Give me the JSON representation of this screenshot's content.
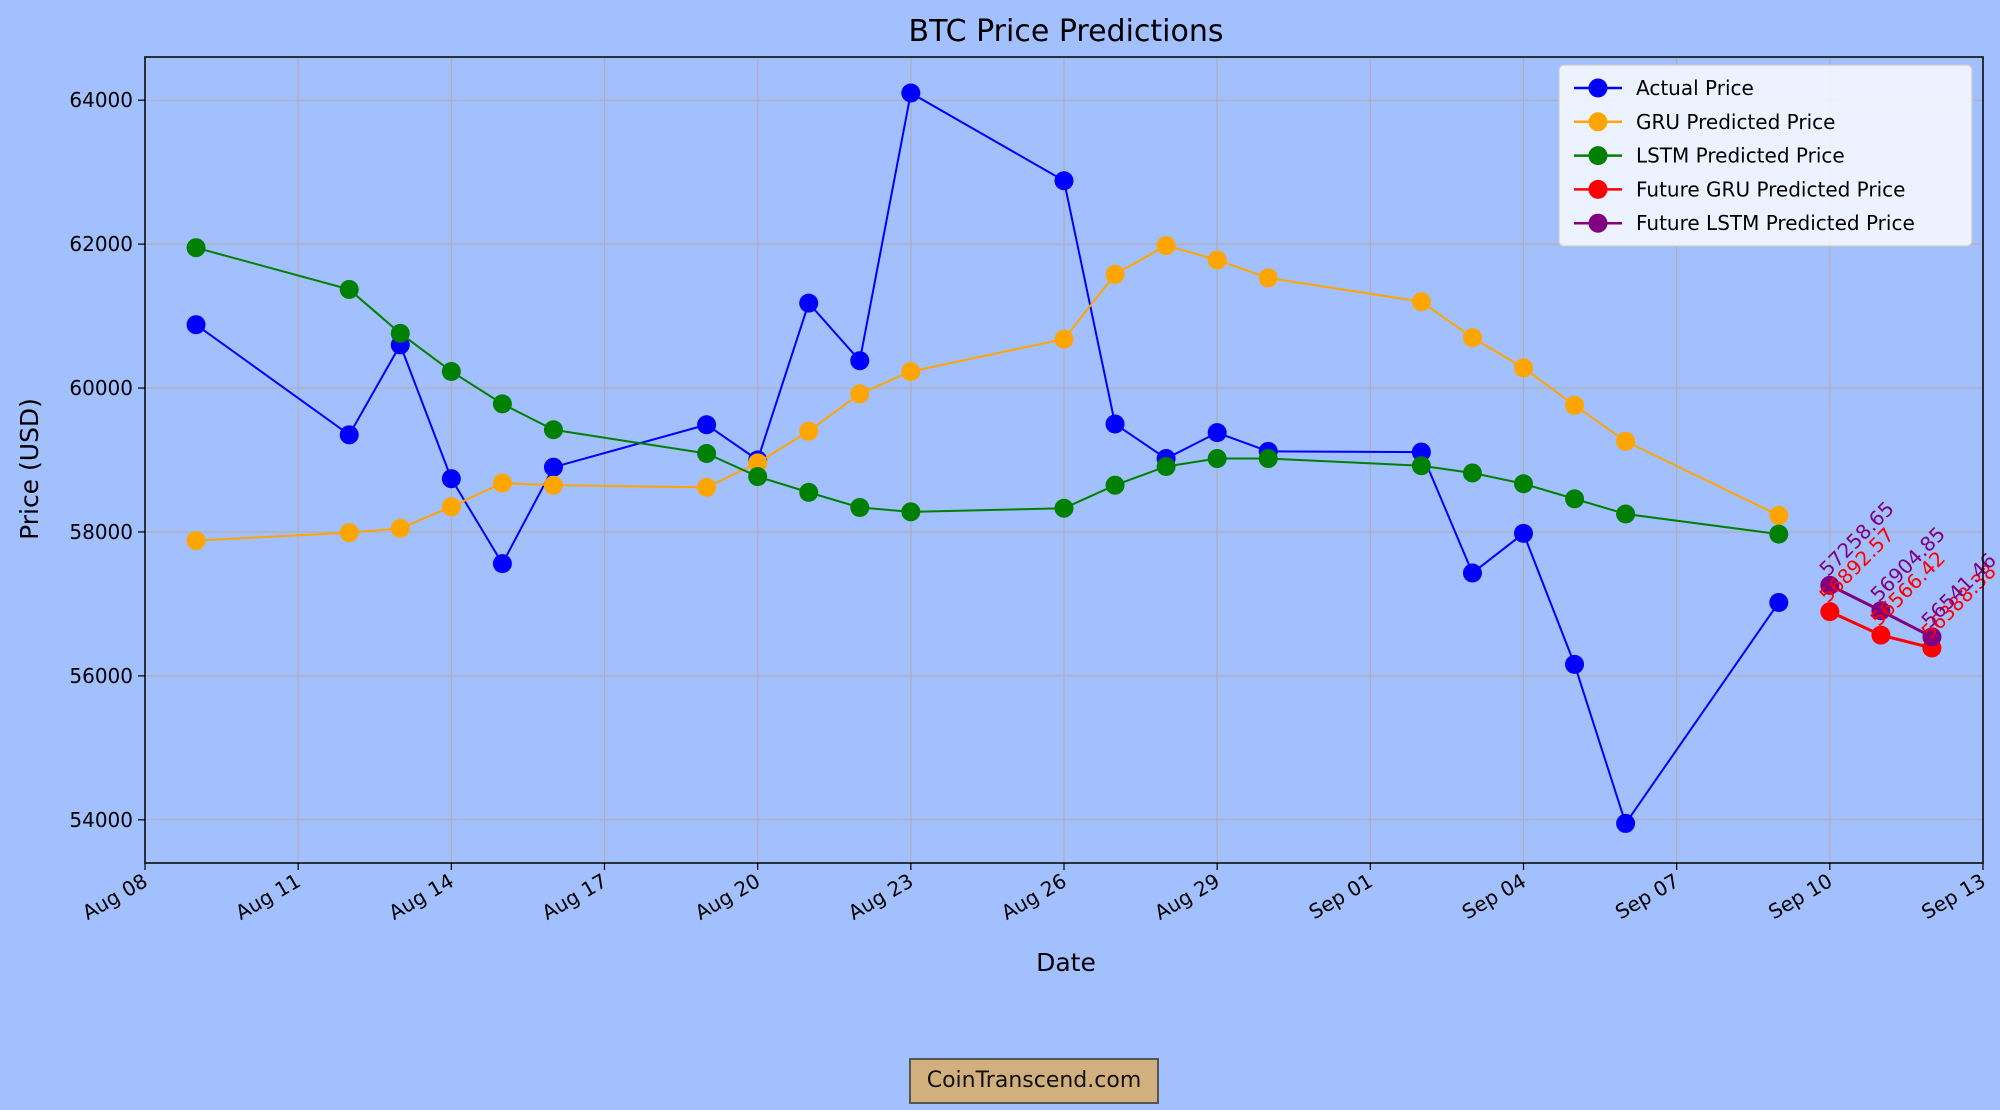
{
  "colors": {
    "background": "#a2bffe",
    "grid": "#b0b0b0",
    "actual": "#0000ff",
    "gru": "#ffa500",
    "lstm": "#008000",
    "future_gru": "#ff0000",
    "future_lstm": "#800080"
  },
  "chart_data": {
    "type": "line",
    "title": "BTC Price Predictions",
    "xlabel": "Date",
    "ylabel": "Price (USD)",
    "xlim": [
      "2024-08-08",
      "2024-09-13"
    ],
    "ylim": [
      53400,
      64600
    ],
    "grid": true,
    "legend_position": "top-right",
    "x_ticks": [
      {
        "date": "2024-08-08",
        "label": "Aug 08"
      },
      {
        "date": "2024-08-11",
        "label": "Aug 11"
      },
      {
        "date": "2024-08-14",
        "label": "Aug 14"
      },
      {
        "date": "2024-08-17",
        "label": "Aug 17"
      },
      {
        "date": "2024-08-20",
        "label": "Aug 20"
      },
      {
        "date": "2024-08-23",
        "label": "Aug 23"
      },
      {
        "date": "2024-08-26",
        "label": "Aug 26"
      },
      {
        "date": "2024-08-29",
        "label": "Aug 29"
      },
      {
        "date": "2024-09-01",
        "label": "Sep 01"
      },
      {
        "date": "2024-09-04",
        "label": "Sep 04"
      },
      {
        "date": "2024-09-07",
        "label": "Sep 07"
      },
      {
        "date": "2024-09-10",
        "label": "Sep 10"
      },
      {
        "date": "2024-09-13",
        "label": "Sep 13"
      }
    ],
    "y_ticks": [
      54000,
      56000,
      58000,
      60000,
      62000,
      64000
    ],
    "series": [
      {
        "name": "Actual Price",
        "color_key": "actual",
        "dates": [
          "2024-08-09",
          "2024-08-12",
          "2024-08-13",
          "2024-08-14",
          "2024-08-15",
          "2024-08-16",
          "2024-08-19",
          "2024-08-20",
          "2024-08-21",
          "2024-08-22",
          "2024-08-23",
          "2024-08-26",
          "2024-08-27",
          "2024-08-28",
          "2024-08-29",
          "2024-08-30",
          "2024-09-02",
          "2024-09-03",
          "2024-09-04",
          "2024-09-05",
          "2024-09-06",
          "2024-09-09"
        ],
        "values": [
          60880,
          59350,
          60600,
          58740,
          57560,
          58900,
          59490,
          59000,
          61180,
          60380,
          64100,
          62880,
          59500,
          59020,
          59380,
          59120,
          59110,
          57430,
          57980,
          56160,
          53950,
          57020
        ]
      },
      {
        "name": "GRU Predicted Price",
        "color_key": "gru",
        "dates": [
          "2024-08-09",
          "2024-08-12",
          "2024-08-13",
          "2024-08-14",
          "2024-08-15",
          "2024-08-16",
          "2024-08-19",
          "2024-08-20",
          "2024-08-21",
          "2024-08-22",
          "2024-08-23",
          "2024-08-26",
          "2024-08-27",
          "2024-08-28",
          "2024-08-29",
          "2024-08-30",
          "2024-09-02",
          "2024-09-03",
          "2024-09-04",
          "2024-09-05",
          "2024-09-06",
          "2024-09-09"
        ],
        "values": [
          57880,
          57990,
          58050,
          58350,
          58680,
          58650,
          58620,
          58960,
          59400,
          59920,
          60230,
          60680,
          61580,
          61980,
          61780,
          61530,
          61200,
          60700,
          60280,
          59760,
          59260,
          58230
        ]
      },
      {
        "name": "LSTM Predicted Price",
        "color_key": "lstm",
        "dates": [
          "2024-08-09",
          "2024-08-12",
          "2024-08-13",
          "2024-08-14",
          "2024-08-15",
          "2024-08-16",
          "2024-08-19",
          "2024-08-20",
          "2024-08-21",
          "2024-08-22",
          "2024-08-23",
          "2024-08-26",
          "2024-08-27",
          "2024-08-28",
          "2024-08-29",
          "2024-08-30",
          "2024-09-02",
          "2024-09-03",
          "2024-09-04",
          "2024-09-05",
          "2024-09-06",
          "2024-09-09"
        ],
        "values": [
          61950,
          61370,
          60760,
          60230,
          59780,
          59420,
          59090,
          58770,
          58550,
          58340,
          58280,
          58330,
          58650,
          58910,
          59020,
          59020,
          58920,
          58820,
          58670,
          58460,
          58250,
          57970
        ]
      },
      {
        "name": "Future GRU Predicted Price",
        "color_key": "future_gru",
        "dates": [
          "2024-09-10",
          "2024-09-11",
          "2024-09-12"
        ],
        "values": [
          56892.57,
          56566.42,
          56388.38
        ],
        "data_labels": [
          "56892.57",
          "56566.42",
          "56388.38"
        ]
      },
      {
        "name": "Future LSTM Predicted Price",
        "color_key": "future_lstm",
        "dates": [
          "2024-09-10",
          "2024-09-11",
          "2024-09-12"
        ],
        "values": [
          57258.65,
          56904.85,
          56541.46
        ],
        "data_labels": [
          "57258.65",
          "56904.85",
          "56541.46"
        ]
      }
    ]
  },
  "footer": {
    "text": "CoinTranscend.com"
  }
}
